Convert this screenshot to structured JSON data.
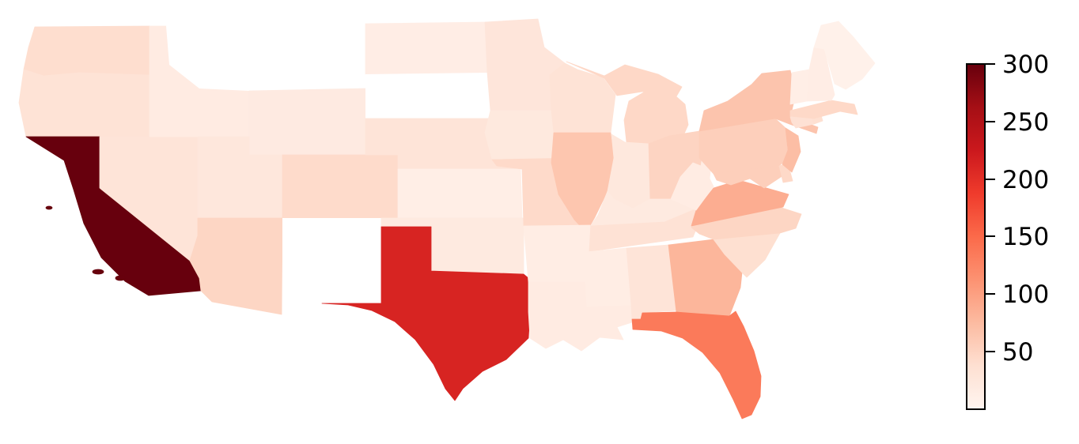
{
  "figure": {
    "background_color": "#ffffff",
    "description": "Choropleth map of the contiguous United States shaded with a sequential red colormap, with a vertical colorbar on the right"
  },
  "chart_data": {
    "type": "choropleth",
    "region": "United States (lower 48 states)",
    "colormap": "Reds",
    "vmin": 0,
    "vmax": 300,
    "values_estimated": true,
    "colormap_stops": [
      [
        0.0,
        "#fff5f0"
      ],
      [
        0.125,
        "#fee0d2"
      ],
      [
        0.25,
        "#fcbba1"
      ],
      [
        0.375,
        "#fc9272"
      ],
      [
        0.5,
        "#fb6a4a"
      ],
      [
        0.625,
        "#ef3b2c"
      ],
      [
        0.75,
        "#cb181d"
      ],
      [
        0.875,
        "#a50f15"
      ],
      [
        1.0,
        "#67000d"
      ]
    ],
    "colorbar": {
      "position": "right",
      "orientation": "vertical",
      "outline_color": "#000000",
      "ticks": [
        "300",
        "250",
        "200",
        "150",
        "100",
        "50"
      ],
      "tick_values": [
        300,
        250,
        200,
        150,
        100,
        50
      ]
    },
    "no_data_color": "#ffffff",
    "no_data_states": [
      "MT",
      "SD",
      "NM"
    ],
    "states": [
      {
        "abbr": "WA",
        "name": "Washington",
        "value": 40
      },
      {
        "abbr": "OR",
        "name": "Oregon",
        "value": 33
      },
      {
        "abbr": "CA",
        "name": "California",
        "value": 300
      },
      {
        "abbr": "NV",
        "name": "Nevada",
        "value": 30
      },
      {
        "abbr": "ID",
        "name": "Idaho",
        "value": 18
      },
      {
        "abbr": "MT",
        "name": "Montana",
        "value": null
      },
      {
        "abbr": "WY",
        "name": "Wyoming",
        "value": 19
      },
      {
        "abbr": "UT",
        "name": "Utah",
        "value": 25
      },
      {
        "abbr": "CO",
        "name": "Colorado",
        "value": 43
      },
      {
        "abbr": "AZ",
        "name": "Arizona",
        "value": 48
      },
      {
        "abbr": "NM",
        "name": "New Mexico",
        "value": null
      },
      {
        "abbr": "ND",
        "name": "North Dakota",
        "value": 14
      },
      {
        "abbr": "SD",
        "name": "South Dakota",
        "value": null
      },
      {
        "abbr": "NE",
        "name": "Nebraska",
        "value": 30
      },
      {
        "abbr": "KS",
        "name": "Kansas",
        "value": 12
      },
      {
        "abbr": "OK",
        "name": "Oklahoma",
        "value": 20
      },
      {
        "abbr": "TX",
        "name": "Texas",
        "value": 212
      },
      {
        "abbr": "MN",
        "name": "Minnesota",
        "value": 28
      },
      {
        "abbr": "IA",
        "name": "Iowa",
        "value": 22
      },
      {
        "abbr": "MO",
        "name": "Missouri",
        "value": 44
      },
      {
        "abbr": "AR",
        "name": "Arkansas",
        "value": 15
      },
      {
        "abbr": "LA",
        "name": "Louisiana",
        "value": 18
      },
      {
        "abbr": "WI",
        "name": "Wisconsin",
        "value": 32
      },
      {
        "abbr": "MI",
        "name": "Michigan",
        "value": 46
      },
      {
        "abbr": "IL",
        "name": "Illinois",
        "value": 64
      },
      {
        "abbr": "IN",
        "name": "Indiana",
        "value": 24
      },
      {
        "abbr": "OH",
        "name": "Ohio",
        "value": 50
      },
      {
        "abbr": "KY",
        "name": "Kentucky",
        "value": 20
      },
      {
        "abbr": "TN",
        "name": "Tennessee",
        "value": 34
      },
      {
        "abbr": "MS",
        "name": "Mississippi",
        "value": 15
      },
      {
        "abbr": "AL",
        "name": "Alabama",
        "value": 30
      },
      {
        "abbr": "GA",
        "name": "Georgia",
        "value": 80
      },
      {
        "abbr": "FL",
        "name": "Florida",
        "value": 135
      },
      {
        "abbr": "SC",
        "name": "South Carolina",
        "value": 38
      },
      {
        "abbr": "NC",
        "name": "North Carolina",
        "value": 48
      },
      {
        "abbr": "VA",
        "name": "Virginia",
        "value": 88
      },
      {
        "abbr": "WV",
        "name": "West Virginia",
        "value": 16
      },
      {
        "abbr": "MD",
        "name": "Maryland",
        "value": 55
      },
      {
        "abbr": "DE",
        "name": "Delaware",
        "value": 45
      },
      {
        "abbr": "NJ",
        "name": "New Jersey",
        "value": 72
      },
      {
        "abbr": "PA",
        "name": "Pennsylvania",
        "value": 55
      },
      {
        "abbr": "NY",
        "name": "New York",
        "value": 66
      },
      {
        "abbr": "CT",
        "name": "Connecticut",
        "value": 35
      },
      {
        "abbr": "RI",
        "name": "Rhode Island",
        "value": 38
      },
      {
        "abbr": "MA",
        "name": "Massachusetts",
        "value": 45
      },
      {
        "abbr": "VT",
        "name": "Vermont",
        "value": 12
      },
      {
        "abbr": "NH",
        "name": "New Hampshire",
        "value": 14
      },
      {
        "abbr": "ME",
        "name": "Maine",
        "value": 8
      }
    ]
  }
}
